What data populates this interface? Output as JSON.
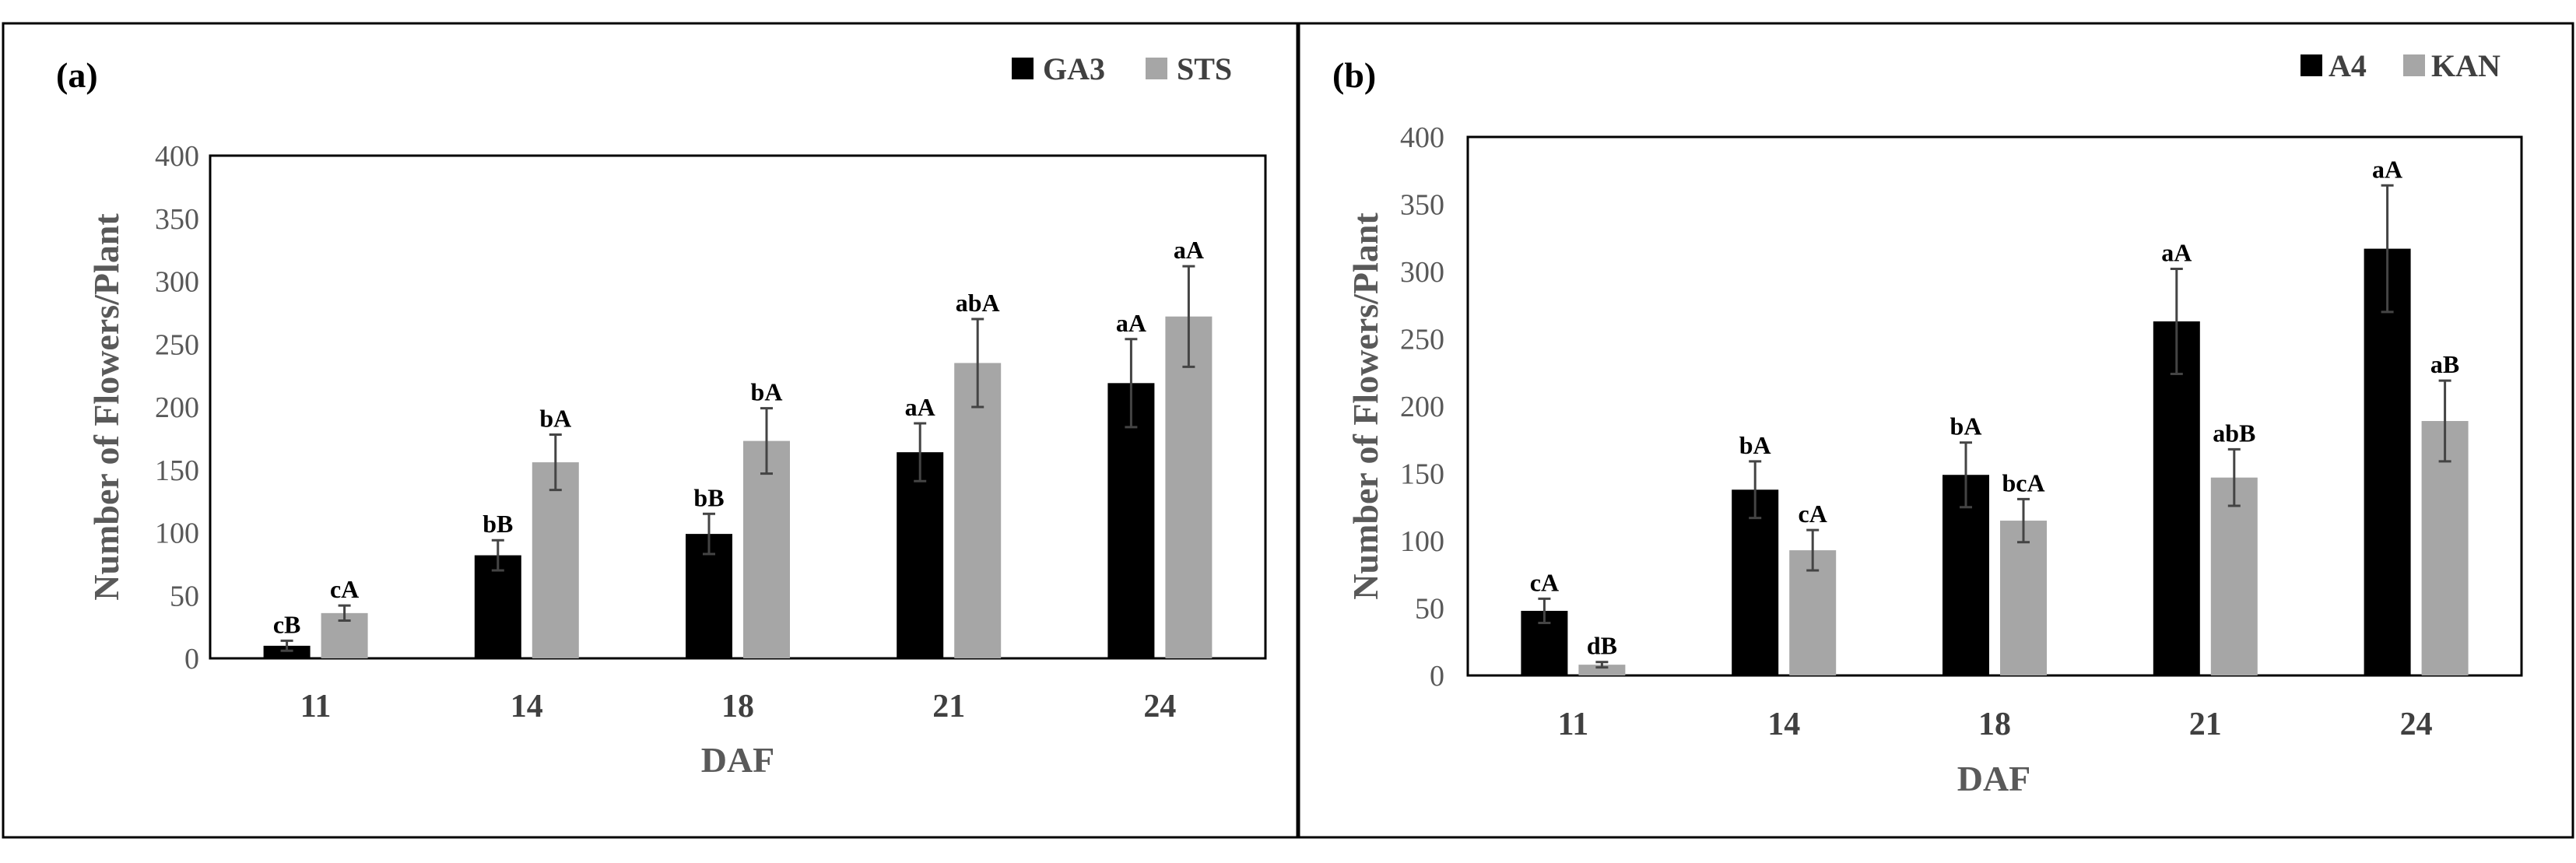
{
  "chart_data": [
    {
      "type": "bar",
      "panel_label": "(a)",
      "title": "",
      "xlabel": "DAF",
      "ylabel": "Number of Flowers/Plant",
      "ylim": [
        0,
        400
      ],
      "yticks": [
        "0",
        "50",
        "100",
        "150",
        "200",
        "250",
        "300",
        "350",
        "400"
      ],
      "categories": [
        "11",
        "14",
        "18",
        "21",
        "24"
      ],
      "legend_position": "top-right",
      "series": [
        {
          "name": "GA3",
          "color": "#000000",
          "values": [
            10,
            82,
            99,
            164,
            219
          ],
          "errors": [
            4,
            12,
            16,
            23,
            35
          ],
          "labels": [
            "cB",
            "bB",
            "bB",
            "aA",
            "aA"
          ]
        },
        {
          "name": "STS",
          "color": "#a6a6a6",
          "values": [
            36,
            156,
            173,
            235,
            272
          ],
          "errors": [
            6,
            22,
            26,
            35,
            40
          ],
          "labels": [
            "cA",
            "bA",
            "bA",
            "abA",
            "aA"
          ]
        }
      ]
    },
    {
      "type": "bar",
      "panel_label": "(b)",
      "title": "",
      "xlabel": "DAF",
      "ylabel": "Number of Flowers/Plant",
      "ylim": [
        0,
        400
      ],
      "yticks": [
        "0",
        "50",
        "100",
        "150",
        "200",
        "250",
        "300",
        "350",
        "400"
      ],
      "categories": [
        "11",
        "14",
        "18",
        "21",
        "24"
      ],
      "legend_position": "top-right",
      "series": [
        {
          "name": "A4",
          "color": "#000000",
          "values": [
            48,
            138,
            149,
            263,
            317
          ],
          "errors": [
            9,
            21,
            24,
            39,
            47
          ],
          "labels": [
            "cA",
            "bA",
            "bA",
            "aA",
            "aA"
          ]
        },
        {
          "name": "KAN",
          "color": "#a6a6a6",
          "values": [
            8,
            93,
            115,
            147,
            189
          ],
          "errors": [
            2,
            15,
            16,
            21,
            30
          ],
          "labels": [
            "dB",
            "cA",
            "bcA",
            "abB",
            "aB"
          ]
        }
      ]
    }
  ]
}
